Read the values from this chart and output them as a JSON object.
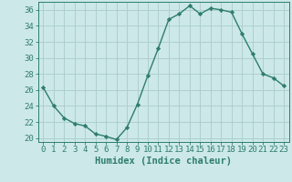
{
  "x": [
    0,
    1,
    2,
    3,
    4,
    5,
    6,
    7,
    8,
    9,
    10,
    11,
    12,
    13,
    14,
    15,
    16,
    17,
    18,
    19,
    20,
    21,
    22,
    23
  ],
  "y": [
    26.3,
    24.0,
    22.5,
    21.8,
    21.5,
    20.5,
    20.2,
    19.8,
    21.3,
    24.2,
    27.8,
    31.2,
    34.8,
    35.5,
    36.5,
    35.5,
    36.2,
    36.0,
    35.7,
    33.0,
    30.5,
    28.0,
    27.5,
    26.5
  ],
  "line_color": "#2e7d6e",
  "marker": "D",
  "marker_size": 2.2,
  "bg_color": "#cce8e8",
  "grid_color": "#b0d8d8",
  "xlabel": "Humidex (Indice chaleur)",
  "xlim": [
    -0.5,
    23.5
  ],
  "ylim": [
    19.5,
    37.0
  ],
  "yticks": [
    20,
    22,
    24,
    26,
    28,
    30,
    32,
    34,
    36
  ],
  "xticks": [
    0,
    1,
    2,
    3,
    4,
    5,
    6,
    7,
    8,
    9,
    10,
    11,
    12,
    13,
    14,
    15,
    16,
    17,
    18,
    19,
    20,
    21,
    22,
    23
  ],
  "tick_color": "#2e7d6e",
  "spine_color": "#2e7d6e",
  "tick_fontsize": 6.5,
  "xlabel_fontsize": 7.5,
  "xlabel_fontweight": "bold",
  "linewidth": 1.0
}
